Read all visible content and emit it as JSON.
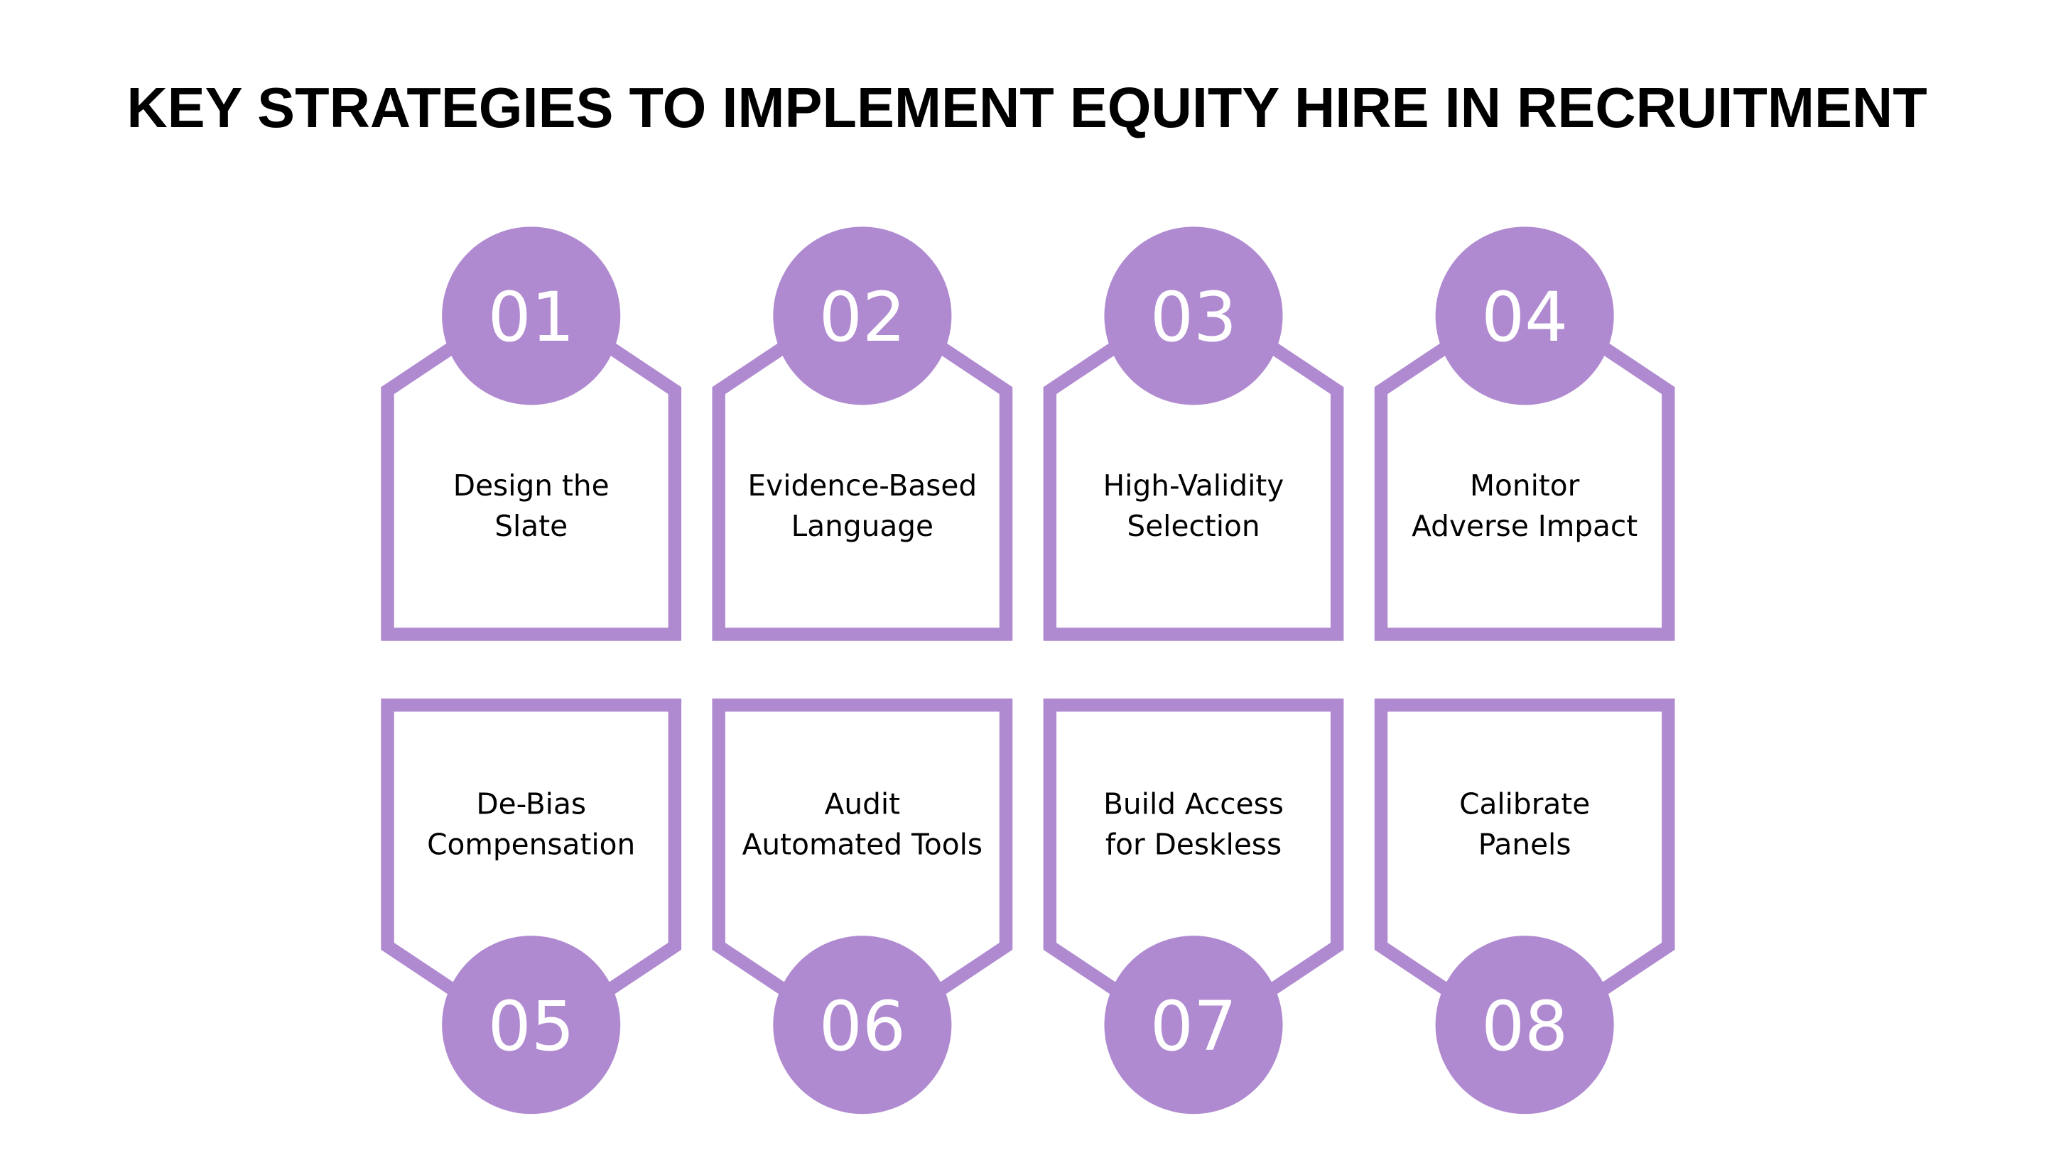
{
  "title": "KEY STRATEGIES TO IMPLEMENT EQUITY HIRE IN RECRUITMENT",
  "accent_color": "#B08AD0",
  "steps": [
    {
      "number": "01",
      "line1": "Design the",
      "line2": "Slate"
    },
    {
      "number": "02",
      "line1": "Evidence-Based",
      "line2": "Language"
    },
    {
      "number": "03",
      "line1": "High-Validity",
      "line2": "Selection"
    },
    {
      "number": "04",
      "line1": "Monitor",
      "line2": "Adverse Impact"
    },
    {
      "number": "05",
      "line1": "De-Bias",
      "line2": "Compensation"
    },
    {
      "number": "06",
      "line1": "Audit",
      "line2": "Automated Tools"
    },
    {
      "number": "07",
      "line1": "Build Access",
      "line2": "for Deskless"
    },
    {
      "number": "08",
      "line1": "Calibrate",
      "line2": "Panels"
    }
  ]
}
